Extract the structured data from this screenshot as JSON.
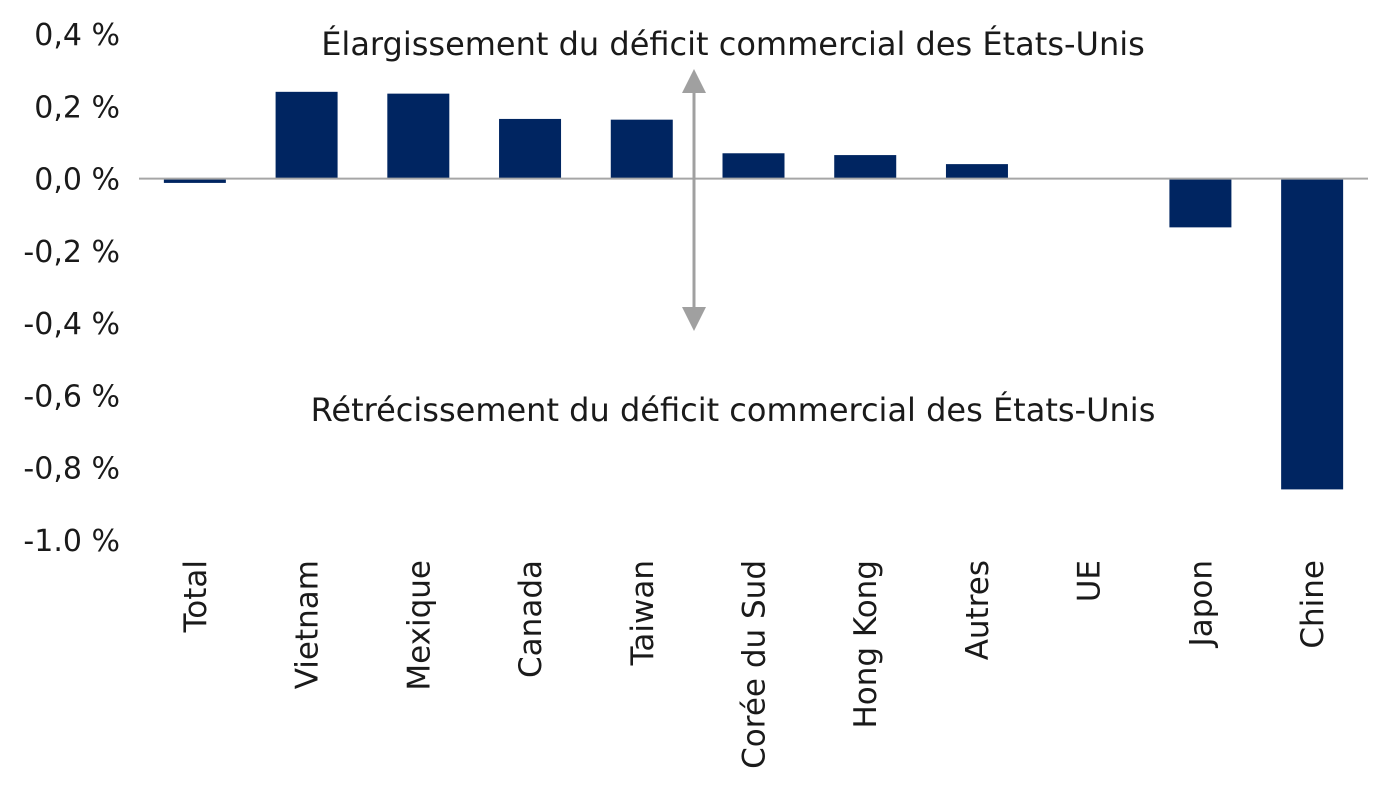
{
  "chart_data": {
    "type": "bar",
    "categories": [
      "Total",
      "Vietnam",
      "Mexique",
      "Canada",
      "Taiwan",
      "Corée du Sud",
      "Hong Kong",
      "Autres",
      "UE",
      "Japon",
      "Chine"
    ],
    "values": [
      -0.012,
      0.24,
      0.235,
      0.165,
      0.163,
      0.07,
      0.065,
      0.04,
      0.0,
      -0.135,
      -0.86
    ],
    "y_tick_labels": [
      "0,4 %",
      "0,2 %",
      "0,0 %",
      "-0,2 %",
      "-0,4 %",
      "-0,6 %",
      "-0,8 %",
      "-1.0 %"
    ],
    "y_ticks": [
      0.4,
      0.2,
      0.0,
      -0.2,
      -0.4,
      -0.6,
      -0.8,
      -1.0
    ],
    "ylim": [
      -1.0,
      0.4
    ],
    "annotations": {
      "top": "Élargissement du déficit commercial des États-Unis",
      "bottom": "Rétrécissement du déficit commercial des États-Unis"
    },
    "grid": false,
    "legend": "none",
    "bar_color": "#002561",
    "axis_color": "#a6a6a6",
    "arrow_color": "#a0a0a0"
  }
}
